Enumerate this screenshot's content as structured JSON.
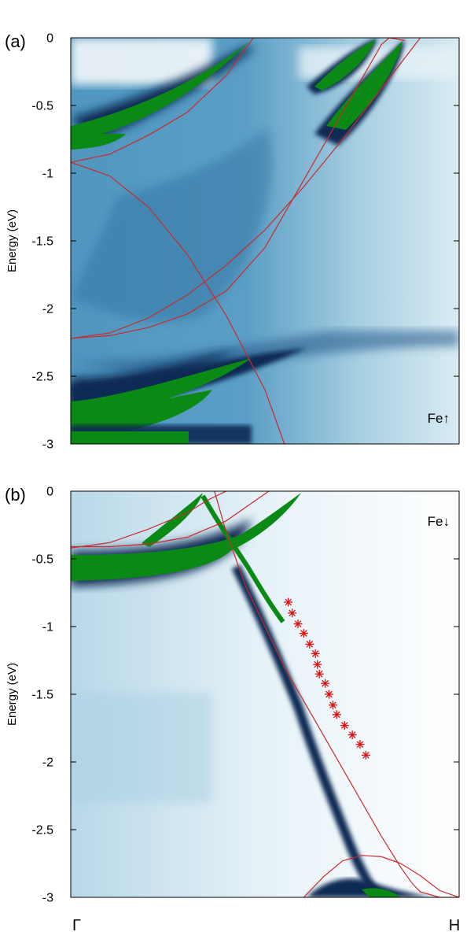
{
  "colors": {
    "spectral_dark": "#0b2a55",
    "spectral_mid": "#2f7fae",
    "spectral_light": "#cfe6f0",
    "saturated": "#0a8a14",
    "bands": "#cc2a2a",
    "experiment": "#dd1111"
  },
  "chart_data": [
    {
      "type": "heatmap",
      "panel_label": "(a)",
      "spin_label": "Fe↑",
      "ylabel": "Energy (eV)",
      "ylim": [
        -3,
        0
      ],
      "xlim": [
        0,
        1
      ],
      "y_ticks": [
        "0",
        "-0.5",
        "-1",
        "-1.5",
        "-2",
        "-2.5",
        "-3"
      ],
      "x_ticks": [],
      "bands": [
        {
          "name": "",
          "x": [
            0,
            0.1,
            0.2,
            0.3,
            0.4,
            0.47
          ],
          "y": [
            -0.92,
            -0.86,
            -0.72,
            -0.55,
            -0.28,
            0.0
          ]
        },
        {
          "name": "",
          "x": [
            0,
            0.1,
            0.2,
            0.3,
            0.4,
            0.5,
            0.55
          ],
          "y": [
            -0.92,
            -1.02,
            -1.25,
            -1.6,
            -2.05,
            -2.6,
            -3.0
          ]
        },
        {
          "name": "",
          "x": [
            0,
            0.1,
            0.2,
            0.3,
            0.4,
            0.5,
            0.6,
            0.7,
            0.78,
            0.82,
            0.86,
            0.9
          ],
          "y": [
            -2.22,
            -2.18,
            -2.07,
            -1.9,
            -1.68,
            -1.42,
            -1.1,
            -0.75,
            -0.45,
            -0.3,
            -0.15,
            0.0
          ]
        },
        {
          "name": "",
          "x": [
            0,
            0.1,
            0.2,
            0.3,
            0.4,
            0.5,
            0.55,
            0.6,
            0.65,
            0.7,
            0.75,
            0.78,
            0.8,
            0.82,
            0.86
          ],
          "y": [
            -2.22,
            -2.2,
            -2.14,
            -2.04,
            -1.87,
            -1.55,
            -1.3,
            -1.05,
            -0.8,
            -0.55,
            -0.3,
            -0.15,
            -0.05,
            0.0,
            -0.02
          ]
        }
      ],
      "experiment": []
    },
    {
      "type": "heatmap",
      "panel_label": "(b)",
      "spin_label": "Fe↓",
      "ylabel": "Energy (eV)",
      "ylim": [
        -3,
        0
      ],
      "xlim": [
        0,
        1
      ],
      "y_ticks": [
        "0",
        "-0.5",
        "-1",
        "-1.5",
        "-2",
        "-2.5",
        "-3"
      ],
      "x_ticks": [
        "Γ",
        "H"
      ],
      "bands": [
        {
          "name": "",
          "x": [
            0,
            0.1,
            0.2,
            0.3,
            0.35,
            0.4,
            0.43
          ],
          "y": [
            -0.42,
            -0.38,
            -0.28,
            -0.16,
            -0.07,
            0.0,
            0.05
          ]
        },
        {
          "name": "",
          "x": [
            0,
            0.1,
            0.2,
            0.3,
            0.4,
            0.5,
            0.51
          ],
          "y": [
            -0.41,
            -0.41,
            -0.39,
            -0.34,
            -0.22,
            -0.02,
            0.0
          ]
        },
        {
          "name": "",
          "x": [
            0.37,
            0.4,
            0.45,
            0.5,
            0.55,
            0.6,
            0.65,
            0.7,
            0.75,
            0.8,
            0.85,
            0.88,
            0.9,
            0.95,
            1.0
          ],
          "y": [
            0.0,
            -0.3,
            -0.7,
            -1.0,
            -1.3,
            -1.55,
            -1.8,
            -2.05,
            -2.3,
            -2.55,
            -2.78,
            -2.9,
            -2.96,
            -3.0,
            -3.0
          ]
        },
        {
          "name": "",
          "x": [
            0.6,
            0.65,
            0.7,
            0.75,
            0.8,
            0.85,
            0.9,
            0.95,
            1.0
          ],
          "y": [
            -3.0,
            -2.85,
            -2.73,
            -2.69,
            -2.7,
            -2.75,
            -2.84,
            -2.95,
            -3.0
          ]
        }
      ],
      "experiment": [
        {
          "x": 0.56,
          "y": -0.82
        },
        {
          "x": 0.57,
          "y": -0.9
        },
        {
          "x": 0.585,
          "y": -0.98
        },
        {
          "x": 0.6,
          "y": -1.05
        },
        {
          "x": 0.615,
          "y": -1.13
        },
        {
          "x": 0.63,
          "y": -1.2
        },
        {
          "x": 0.635,
          "y": -1.28
        },
        {
          "x": 0.64,
          "y": -1.35
        },
        {
          "x": 0.655,
          "y": -1.42
        },
        {
          "x": 0.665,
          "y": -1.5
        },
        {
          "x": 0.675,
          "y": -1.58
        },
        {
          "x": 0.685,
          "y": -1.65
        },
        {
          "x": 0.705,
          "y": -1.73
        },
        {
          "x": 0.725,
          "y": -1.8
        },
        {
          "x": 0.745,
          "y": -1.87
        },
        {
          "x": 0.76,
          "y": -1.95
        }
      ]
    }
  ]
}
